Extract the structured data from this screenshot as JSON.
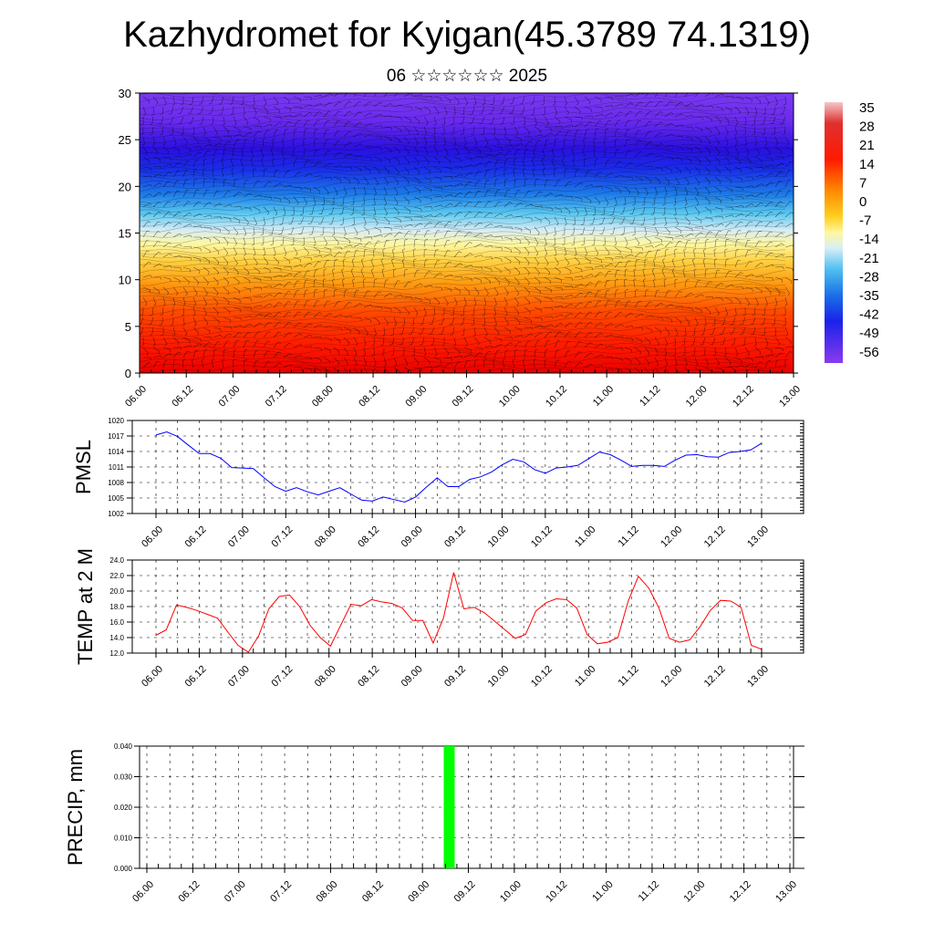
{
  "title": "Kazhydromet for Kyigan(45.3789 74.1319)",
  "subtitle": "06 ☆☆☆☆☆☆ 2025",
  "chart_data": [
    {
      "type": "heatmap",
      "name": "vertical-profile",
      "description_kind": "temperature shading with wind barbs",
      "ylim": [
        0,
        30
      ],
      "yticks": [
        "0",
        "5",
        "10",
        "15",
        "20",
        "25",
        "30"
      ],
      "xticks": [
        "06.00",
        "06.12",
        "07.00",
        "07.12",
        "08.00",
        "08.12",
        "09.00",
        "09.12",
        "10.00",
        "10.12",
        "11.00",
        "11.12",
        "12.00",
        "12.12",
        "13.00"
      ],
      "colorbar": {
        "labels": [
          "35",
          "28",
          "21",
          "14",
          "7",
          "0",
          "-7",
          "-14",
          "-21",
          "-28",
          "-35",
          "-42",
          "-49",
          "-56"
        ],
        "range": [
          -60,
          38
        ]
      }
    },
    {
      "type": "line",
      "name": "pmsl",
      "ylabel": "PMSL",
      "ylim": [
        1002,
        1020
      ],
      "yticks": [
        "1002",
        "1005",
        "1008",
        "1011",
        "1014",
        "1017",
        "1020"
      ],
      "xticks": [
        "06.00",
        "06.12",
        "07.00",
        "07.12",
        "08.00",
        "08.12",
        "09.00",
        "09.12",
        "10.00",
        "10.12",
        "11.00",
        "11.12",
        "12.00",
        "12.12",
        "13.00"
      ],
      "color": "#0000ff",
      "values": [
        1017.2,
        1017.8,
        1016.9,
        1015.2,
        1013.6,
        1013.6,
        1012.7,
        1010.9,
        1010.8,
        1010.7,
        1008.9,
        1007.2,
        1006.3,
        1007.0,
        1006.2,
        1005.6,
        1006.3,
        1007.0,
        1005.8,
        1004.6,
        1004.4,
        1005.2,
        1004.7,
        1004.2,
        1005.2,
        1007.1,
        1008.9,
        1007.2,
        1007.2,
        1008.6,
        1009.1,
        1010.0,
        1011.4,
        1012.5,
        1012.0,
        1010.5,
        1009.8,
        1010.8,
        1011.0,
        1011.3,
        1012.6,
        1013.9,
        1013.4,
        1012.3,
        1011.1,
        1011.3,
        1011.3,
        1011.1,
        1012.3,
        1013.3,
        1013.4,
        1013.0,
        1012.9,
        1013.8,
        1014.0,
        1014.3,
        1015.6
      ]
    },
    {
      "type": "line",
      "name": "temp",
      "ylabel": "TEMP at 2 M",
      "ylim": [
        12.0,
        24.0
      ],
      "yticks": [
        "12.0",
        "14.0",
        "16.0",
        "18.0",
        "20.0",
        "22.0",
        "24.0"
      ],
      "xticks": [
        "06.00",
        "06.12",
        "07.00",
        "07.12",
        "08.00",
        "08.12",
        "09.00",
        "09.12",
        "10.00",
        "10.12",
        "11.00",
        "11.12",
        "12.00",
        "12.12",
        "13.00"
      ],
      "color": "#ff0000",
      "values": [
        14.3,
        15.0,
        18.2,
        17.9,
        17.5,
        17.0,
        16.5,
        14.7,
        13.0,
        12.1,
        14.2,
        17.7,
        19.3,
        19.5,
        18.0,
        15.6,
        14.0,
        12.9,
        15.6,
        18.3,
        18.1,
        18.9,
        18.6,
        18.4,
        17.8,
        16.2,
        16.2,
        13.3,
        16.5,
        22.4,
        17.7,
        17.9,
        17.2,
        16.1,
        15.0,
        13.9,
        14.4,
        17.4,
        18.5,
        19.0,
        18.9,
        17.8,
        14.4,
        13.2,
        13.4,
        14.0,
        18.7,
        21.9,
        20.4,
        17.8,
        13.9,
        13.4,
        13.7,
        15.4,
        17.5,
        18.8,
        18.7,
        17.9,
        13.0,
        12.5
      ]
    },
    {
      "type": "bar",
      "name": "precip",
      "ylabel": "PRECIP, mm",
      "ylim": [
        0.0,
        0.04
      ],
      "yticks": [
        "0.000",
        "0.010",
        "0.020",
        "0.030",
        "0.040"
      ],
      "xticks": [
        "06.00",
        "06.12",
        "07.00",
        "07.12",
        "08.00",
        "08.12",
        "09.00",
        "09.12",
        "10.00",
        "10.12",
        "11.00",
        "11.12",
        "12.00",
        "12.12",
        "13.00"
      ],
      "color": "#00ff00",
      "bars": [
        {
          "hours_after_start": 79,
          "value": 0.04
        }
      ]
    }
  ]
}
